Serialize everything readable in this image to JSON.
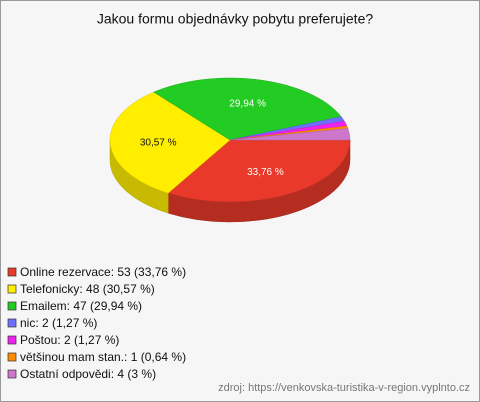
{
  "chart_data": {
    "type": "pie",
    "title": "Jakou formu objednávky pobytu preferujete?",
    "values": [
      33.76,
      30.57,
      29.94,
      1.27,
      1.27,
      0.64,
      3
    ],
    "value_labels": [
      "33,76 %",
      "30,57 %",
      "29,94 %",
      null,
      null,
      null,
      null
    ],
    "legend": [
      "Online rezervace: 53 (33,76 %)",
      "Telefonicky: 48 (30,57 %)",
      "Emailem: 47 (29,94 %)",
      "nic: 2 (1,27 %)",
      "Poštou: 2 (1,27 %)",
      "většinou mam stan.: 1 (0,64 %)",
      "Ostatní odpovědi: 4 (3 %)"
    ],
    "colors": [
      "#e8392a",
      "#ffee00",
      "#22cc22",
      "#6f6fff",
      "#ee22ee",
      "#ff8c00",
      "#cc77cc"
    ],
    "source": "zdroj: https://venkovska-turistika-v-region.vyplnto.cz"
  }
}
